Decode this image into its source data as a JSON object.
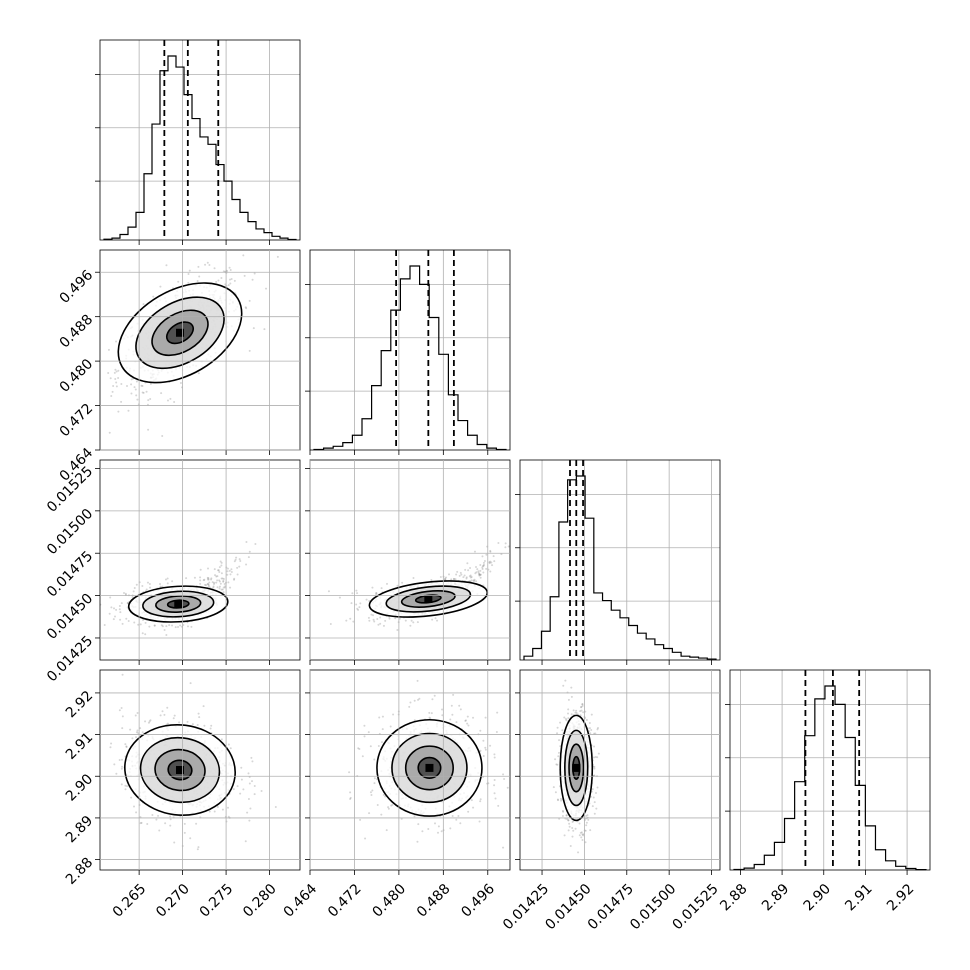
{
  "chart_data": {
    "type": "corner",
    "params": [
      {
        "range": [
          0.2605,
          0.2835
        ],
        "ticks": [
          "0.265",
          "0.270",
          "0.275",
          "0.280"
        ],
        "quantiles": [
          0.2679,
          0.2706,
          0.2741
        ],
        "hist": [
          0.4,
          1,
          3,
          7,
          15,
          36,
          63,
          92,
          100,
          94,
          79,
          66,
          56,
          52,
          41,
          32,
          22,
          15,
          10,
          6,
          4,
          2,
          1,
          0.3
        ]
      },
      {
        "range": [
          0.464,
          0.5
        ],
        "ticks": [
          "0.464",
          "0.472",
          "0.480",
          "0.488",
          "0.496"
        ],
        "quantiles": [
          0.4795,
          0.4853,
          0.4899
        ],
        "hist": [
          0.3,
          1,
          2,
          4,
          8,
          17,
          35,
          54,
          76,
          93,
          100,
          90,
          72,
          52,
          30,
          16,
          8,
          3,
          1,
          0.3
        ]
      },
      {
        "range": [
          0.01412,
          0.0153
        ],
        "ticks": [
          "0.01425",
          "0.01450",
          "0.01475",
          "0.01500",
          "0.01525"
        ],
        "quantiles": [
          0.014415,
          0.014452,
          0.014492
        ],
        "hist": [
          2,
          6,
          15,
          33,
          72,
          94,
          96,
          74,
          35,
          31,
          26,
          22,
          18,
          14,
          11,
          8,
          6,
          4,
          2,
          1.5,
          1,
          0.5
        ]
      },
      {
        "range": [
          2.8775,
          2.9255
        ],
        "ticks": [
          "2.88",
          "2.89",
          "2.90",
          "2.91",
          "2.92"
        ],
        "quantiles": [
          2.8956,
          2.9022,
          2.9085
        ],
        "hist": [
          0.3,
          1,
          3,
          8,
          15,
          28,
          48,
          73,
          93,
          100,
          90,
          72,
          46,
          24,
          11,
          5,
          2,
          0.8,
          0.2
        ]
      }
    ],
    "panels_2d": [
      {
        "x": 0,
        "y": 1,
        "center": [
          0.2697,
          0.4851
        ],
        "sd": [
          0.0031,
          0.0046
        ],
        "rho": 0.62
      },
      {
        "x": 0,
        "y": 2,
        "center": [
          0.2695,
          0.01445
        ],
        "sd": [
          0.0026,
          5e-05
        ],
        "rho": 0.15
      },
      {
        "x": 1,
        "y": 2,
        "center": [
          0.4853,
          0.01448
        ],
        "sd": [
          0.0046,
          5e-05
        ],
        "rho": 0.35
      },
      {
        "x": 0,
        "y": 3,
        "center": [
          0.2697,
          2.9015
        ],
        "sd": [
          0.0029,
          0.0052
        ],
        "rho": -0.15
      },
      {
        "x": 1,
        "y": 3,
        "center": [
          0.4855,
          2.902
        ],
        "sd": [
          0.0045,
          0.0055
        ],
        "rho": 0.0
      },
      {
        "x": 2,
        "y": 3,
        "center": [
          0.014452,
          2.902
        ],
        "sd": [
          4.5e-05,
          0.006
        ],
        "rho": 0.0
      }
    ],
    "grid": true,
    "axis_color": "#000000",
    "density_color": "#000000"
  }
}
